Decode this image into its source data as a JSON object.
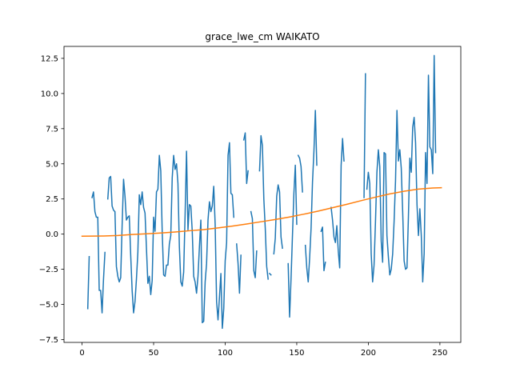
{
  "chart_data": {
    "type": "line",
    "title": "grace_lwe_cm WAIKATO",
    "xlabel": "",
    "ylabel": "",
    "xlim": [
      -12.6,
      264.6
    ],
    "ylim": [
      -7.7,
      13.35
    ],
    "x_ticks": [
      0,
      50,
      100,
      150,
      200,
      250
    ],
    "y_ticks": [
      -7.5,
      -5.0,
      -2.5,
      0.0,
      2.5,
      5.0,
      7.5,
      10.0,
      12.5
    ],
    "x_tick_labels": [
      "0",
      "50",
      "100",
      "150",
      "200",
      "250"
    ],
    "y_tick_labels": [
      "−7.5",
      "−5.0",
      "−2.5",
      "0.0",
      "2.5",
      "5.0",
      "7.5",
      "10.0",
      "12.5"
    ],
    "grid": false,
    "series": [
      {
        "color": "#1f77b4",
        "segments": [
          [
            [
              4,
              -5.3
            ],
            [
              5,
              -1.6
            ]
          ],
          [
            [
              7,
              2.6
            ],
            [
              8,
              3.0
            ],
            [
              9,
              1.6
            ],
            [
              10,
              1.2
            ],
            [
              11,
              1.2
            ],
            [
              12,
              -4.0
            ],
            [
              13,
              -4.0
            ],
            [
              14,
              -5.6
            ],
            [
              15,
              -3.2
            ],
            [
              16,
              -1.3
            ]
          ],
          [
            [
              18,
              2.5
            ],
            [
              19,
              4.0
            ],
            [
              20,
              4.1
            ],
            [
              21,
              2.0
            ],
            [
              22,
              1.7
            ],
            [
              23,
              1.6
            ],
            [
              24,
              -2.3
            ],
            [
              25,
              -3.0
            ],
            [
              26,
              -3.4
            ],
            [
              27,
              -3.1
            ],
            [
              28,
              0.6
            ],
            [
              29,
              3.9
            ],
            [
              30,
              2.7
            ],
            [
              31,
              1.0
            ],
            [
              32,
              1.2
            ],
            [
              33,
              1.3
            ],
            [
              34,
              -1.5
            ],
            [
              35,
              -4.0
            ],
            [
              36,
              -5.6
            ],
            [
              37,
              -4.8
            ],
            [
              38,
              -3.2
            ],
            [
              39,
              -1.3
            ],
            [
              40,
              2.8
            ],
            [
              41,
              2.1
            ],
            [
              42,
              3.0
            ],
            [
              43,
              1.9
            ],
            [
              44,
              1.5
            ],
            [
              45,
              -1.0
            ],
            [
              46,
              -3.5
            ],
            [
              47,
              -3.0
            ],
            [
              48,
              -4.3
            ],
            [
              49,
              -3.3
            ],
            [
              50,
              1.2
            ],
            [
              51,
              0.2
            ],
            [
              52,
              3.0
            ],
            [
              53,
              3.2
            ],
            [
              54,
              5.6
            ],
            [
              55,
              4.5
            ],
            [
              56,
              0.2
            ],
            [
              57,
              -2.9
            ],
            [
              58,
              -3.0
            ],
            [
              59,
              -2.2
            ],
            [
              60,
              -2.2
            ],
            [
              61,
              -0.7
            ],
            [
              62,
              -0.1
            ],
            [
              63,
              4.0
            ],
            [
              64,
              5.6
            ],
            [
              65,
              4.6
            ],
            [
              66,
              5.0
            ],
            [
              67,
              3.6
            ],
            [
              68,
              -0.9
            ],
            [
              69,
              -3.4
            ],
            [
              70,
              -3.7
            ],
            [
              71,
              -2.7
            ],
            [
              72,
              1.4
            ],
            [
              73,
              5.9
            ],
            [
              74,
              0.3
            ],
            [
              75,
              2.1
            ],
            [
              76,
              2.0
            ],
            [
              77,
              0.2
            ],
            [
              78,
              -3.0
            ],
            [
              79,
              -3.4
            ],
            [
              80,
              -4.2
            ],
            [
              81,
              -3.0
            ],
            [
              82,
              -0.9
            ],
            [
              83,
              1.0
            ],
            [
              84,
              -6.3
            ],
            [
              85,
              -6.2
            ],
            [
              86,
              -3.4
            ],
            [
              87,
              -2.1
            ],
            [
              88,
              1.0
            ],
            [
              89,
              2.3
            ],
            [
              90,
              1.6
            ],
            [
              91,
              2.0
            ],
            [
              92,
              3.4
            ],
            [
              93,
              0.7
            ],
            [
              94,
              -4.8
            ],
            [
              95,
              -6.1
            ],
            [
              96,
              -4.5
            ],
            [
              97,
              -2.8
            ],
            [
              98,
              -6.7
            ],
            [
              99,
              -5.3
            ],
            [
              100,
              -1.9
            ],
            [
              101,
              -0.6
            ],
            [
              102,
              5.6
            ],
            [
              103,
              6.5
            ],
            [
              104,
              2.9
            ],
            [
              105,
              2.8
            ],
            [
              106,
              1.2
            ]
          ],
          [
            [
              108,
              -0.7
            ],
            [
              109,
              -2.1
            ],
            [
              110,
              -4.2
            ],
            [
              111,
              -1.5
            ]
          ],
          [
            [
              113,
              6.7
            ],
            [
              114,
              7.2
            ],
            [
              115,
              3.6
            ],
            [
              116,
              4.5
            ]
          ],
          [
            [
              118,
              1.6
            ],
            [
              119,
              1.1
            ],
            [
              120,
              -2.6
            ],
            [
              121,
              -3.1
            ],
            [
              122,
              -1.2
            ]
          ],
          [
            [
              124,
              4.5
            ],
            [
              125,
              7.0
            ],
            [
              126,
              6.3
            ],
            [
              127,
              2.5
            ],
            [
              128,
              0.4
            ],
            [
              129,
              -2.3
            ],
            [
              130,
              -3.2
            ]
          ],
          [
            [
              131,
              -2.8
            ],
            [
              132,
              -2.9
            ]
          ],
          [
            [
              134,
              -1.4
            ],
            [
              135,
              -0.3
            ],
            [
              136,
              2.7
            ],
            [
              137,
              3.5
            ],
            [
              138,
              3.0
            ],
            [
              139,
              -0.2
            ],
            [
              140,
              -1.0
            ]
          ],
          [
            [
              142,
              -1.3
            ]
          ],
          [
            [
              144,
              -2.1
            ],
            [
              145,
              -5.9
            ],
            [
              146,
              -3.2
            ],
            [
              147,
              -0.1
            ],
            [
              148,
              2.9
            ],
            [
              149,
              4.9
            ],
            [
              150,
              0.7
            ]
          ],
          [
            [
              151,
              5.6
            ],
            [
              152,
              5.4
            ],
            [
              153,
              4.8
            ],
            [
              154,
              3.0
            ]
          ],
          [
            [
              156,
              -0.8
            ],
            [
              157,
              -2.4
            ],
            [
              158,
              -3.4
            ],
            [
              159,
              -1.7
            ],
            [
              160,
              0.4
            ],
            [
              161,
              3.7
            ],
            [
              162,
              5.9
            ],
            [
              163,
              8.8
            ],
            [
              164,
              4.9
            ]
          ],
          [
            [
              167,
              0.2
            ],
            [
              168,
              0.5
            ],
            [
              169,
              -2.6
            ],
            [
              170,
              -2.0
            ]
          ],
          [
            [
              174,
              1.9
            ],
            [
              175,
              1.0
            ],
            [
              176,
              -0.2
            ],
            [
              177,
              -0.6
            ],
            [
              178,
              0.6
            ],
            [
              179,
              -1.2
            ],
            [
              180,
              -2.4
            ],
            [
              181,
              4.9
            ],
            [
              182,
              6.8
            ],
            [
              183,
              5.2
            ]
          ],
          [
            [
              197,
              2.6
            ],
            [
              198,
              11.4
            ]
          ],
          [
            [
              199,
              3.2
            ],
            [
              200,
              4.4
            ],
            [
              201,
              3.6
            ],
            [
              202,
              -1.4
            ],
            [
              203,
              -3.4
            ],
            [
              204,
              -2.2
            ],
            [
              205,
              0.9
            ],
            [
              206,
              4.4
            ],
            [
              207,
              6.0
            ],
            [
              208,
              4.8
            ],
            [
              209,
              -0.5
            ],
            [
              210,
              -2.0
            ],
            [
              211,
              5.8
            ],
            [
              212,
              5.7
            ],
            [
              213,
              -0.1
            ],
            [
              214,
              -1.6
            ],
            [
              215,
              -2.9
            ],
            [
              216,
              -2.5
            ],
            [
              217,
              -1.4
            ],
            [
              218,
              0.9
            ],
            [
              219,
              3.8
            ],
            [
              220,
              8.8
            ],
            [
              221,
              5.2
            ],
            [
              222,
              6.0
            ],
            [
              223,
              4.7
            ],
            [
              224,
              1.6
            ],
            [
              225,
              -1.9
            ],
            [
              226,
              -2.5
            ],
            [
              227,
              -2.4
            ],
            [
              228,
              1.2
            ],
            [
              229,
              5.4
            ],
            [
              230,
              4.4
            ],
            [
              231,
              7.6
            ],
            [
              232,
              8.3
            ],
            [
              233,
              6.5
            ],
            [
              234,
              2.1
            ],
            [
              235,
              -0.1
            ],
            [
              236,
              1.8
            ],
            [
              237,
              -0.1
            ],
            [
              238,
              -3.4
            ],
            [
              239,
              -1.4
            ],
            [
              240,
              5.8
            ],
            [
              241,
              3.6
            ],
            [
              242,
              11.3
            ],
            [
              243,
              6.2
            ],
            [
              244,
              6.0
            ],
            [
              245,
              4.3
            ],
            [
              246,
              12.7
            ],
            [
              247,
              5.8
            ]
          ]
        ]
      },
      {
        "color": "#ff7f0e",
        "segments": [
          [
            [
              0,
              -0.15
            ],
            [
              15,
              -0.13
            ],
            [
              25,
              -0.1
            ],
            [
              35,
              -0.03
            ],
            [
              45,
              0.02
            ],
            [
              55,
              0.08
            ],
            [
              65,
              0.15
            ],
            [
              75,
              0.24
            ],
            [
              85,
              0.32
            ],
            [
              95,
              0.44
            ],
            [
              105,
              0.57
            ],
            [
              115,
              0.72
            ],
            [
              125,
              0.88
            ],
            [
              135,
              1.04
            ],
            [
              145,
              1.22
            ],
            [
              155,
              1.42
            ],
            [
              165,
              1.64
            ],
            [
              175,
              1.88
            ],
            [
              185,
              2.12
            ],
            [
              195,
              2.38
            ],
            [
              205,
              2.63
            ],
            [
              215,
              2.86
            ],
            [
              225,
              3.05
            ],
            [
              235,
              3.2
            ],
            [
              245,
              3.28
            ],
            [
              251,
              3.3
            ]
          ]
        ]
      }
    ]
  }
}
